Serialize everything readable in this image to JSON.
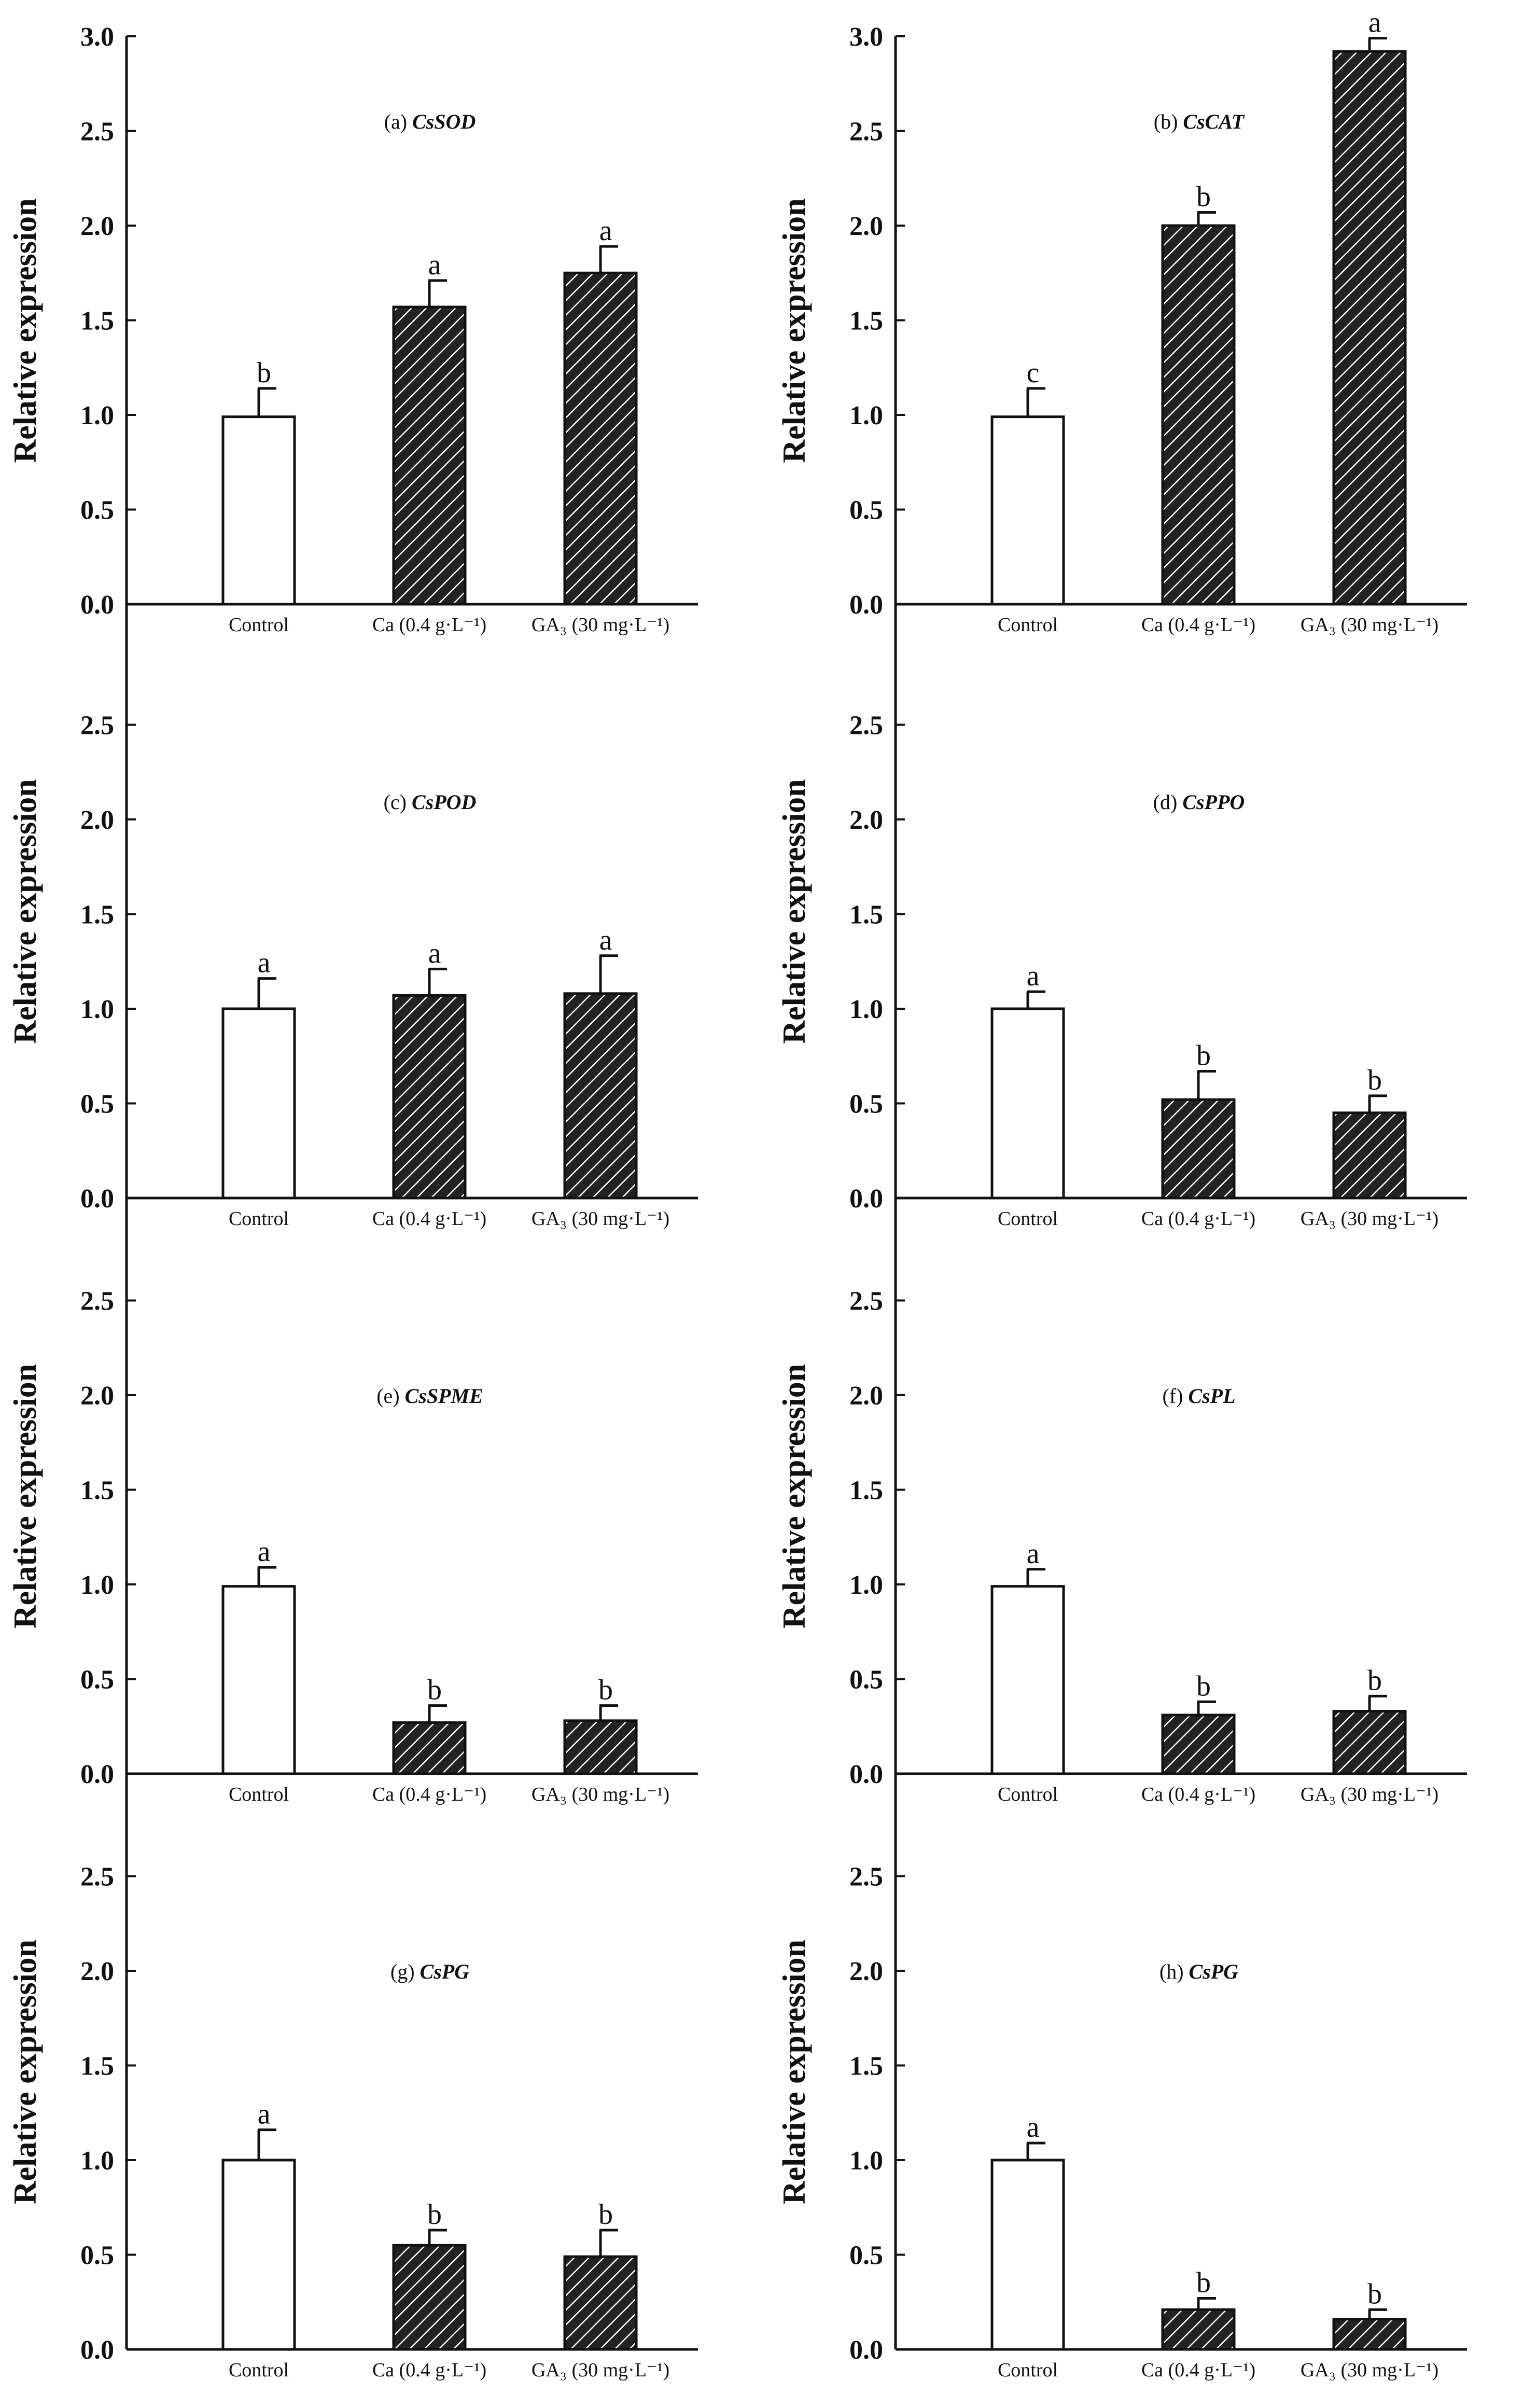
{
  "figure": {
    "colors": {
      "axis": "#111111",
      "control_fill": "#ffffff",
      "treated_fill": "#222222",
      "hatch": "#ffffff"
    }
  },
  "chart_data": [
    {
      "id": "a",
      "type": "bar",
      "title_prefix": "(a)",
      "gene": "CsSOD",
      "ylabel": "Relative expression",
      "ylim": [
        0,
        3.0
      ],
      "yticks": [
        "0.0",
        "0.5",
        "1.0",
        "1.5",
        "2.0",
        "2.5",
        "3.0"
      ],
      "categories": [
        "Control",
        "Ca (0.4 g·L⁻¹)",
        "GA₃ (30 mg·L⁻¹)"
      ],
      "values": [
        0.99,
        1.57,
        1.75
      ],
      "errors": [
        0.15,
        0.14,
        0.14
      ],
      "letters": [
        "b",
        "a",
        "a"
      ]
    },
    {
      "id": "b",
      "type": "bar",
      "title_prefix": "(b)",
      "gene": "CsCAT",
      "ylabel": "Relative expression",
      "ylim": [
        0,
        3.0
      ],
      "yticks": [
        "0.0",
        "0.5",
        "1.0",
        "1.5",
        "2.0",
        "2.5",
        "3.0"
      ],
      "categories": [
        "Control",
        "Ca (0.4 g·L⁻¹)",
        "GA₃ (30 mg·L⁻¹)"
      ],
      "values": [
        0.99,
        2.0,
        2.92
      ],
      "errors": [
        0.15,
        0.07,
        0.07
      ],
      "letters": [
        "c",
        "b",
        "a"
      ]
    },
    {
      "id": "c",
      "type": "bar",
      "title_prefix": "(c)",
      "gene": "CsPOD",
      "ylabel": "Relative expression",
      "ylim": [
        0,
        3.0
      ],
      "yticks": [
        "0.0",
        "0.5",
        "1.0",
        "1.5",
        "2.0",
        "2.5"
      ],
      "categories": [
        "Control",
        "Ca (0.4 g·L⁻¹)",
        "GA₃ (30 mg·L⁻¹)"
      ],
      "values": [
        1.0,
        1.07,
        1.08
      ],
      "errors": [
        0.16,
        0.14,
        0.2
      ],
      "letters": [
        "a",
        "a",
        "a"
      ]
    },
    {
      "id": "d",
      "type": "bar",
      "title_prefix": "(d)",
      "gene": "CsPPO",
      "ylabel": "Relative expression",
      "ylim": [
        0,
        3.0
      ],
      "yticks": [
        "0.0",
        "0.5",
        "1.0",
        "1.5",
        "2.0",
        "2.5"
      ],
      "categories": [
        "Control",
        "Ca (0.4 g·L⁻¹)",
        "GA₃ (30 mg·L⁻¹)"
      ],
      "values": [
        1.0,
        0.52,
        0.45
      ],
      "errors": [
        0.09,
        0.15,
        0.09
      ],
      "letters": [
        "a",
        "b",
        "b"
      ]
    },
    {
      "id": "e",
      "type": "bar",
      "title_prefix": "(e)",
      "gene": "CsSPME",
      "ylabel": "Relative expression",
      "ylim": [
        0,
        3.0
      ],
      "yticks": [
        "0.0",
        "0.5",
        "1.0",
        "1.5",
        "2.0",
        "2.5"
      ],
      "categories": [
        "Control",
        "Ca (0.4 g·L⁻¹)",
        "GA₃ (30 mg·L⁻¹)"
      ],
      "values": [
        0.99,
        0.27,
        0.28
      ],
      "errors": [
        0.1,
        0.09,
        0.08
      ],
      "letters": [
        "a",
        "b",
        "b"
      ]
    },
    {
      "id": "f",
      "type": "bar",
      "title_prefix": "(f)",
      "gene": "CsPL",
      "ylabel": "Relative expression",
      "ylim": [
        0,
        3.0
      ],
      "yticks": [
        "0.0",
        "0.5",
        "1.0",
        "1.5",
        "2.0",
        "2.5"
      ],
      "categories": [
        "Control",
        "Ca (0.4 g·L⁻¹)",
        "GA₃ (30 mg·L⁻¹)"
      ],
      "values": [
        0.99,
        0.31,
        0.33
      ],
      "errors": [
        0.09,
        0.07,
        0.08
      ],
      "letters": [
        "a",
        "b",
        "b"
      ]
    },
    {
      "id": "g",
      "type": "bar",
      "title_prefix": "(g)",
      "gene": "CsPG",
      "ylabel": "Relative expression",
      "ylim": [
        0,
        3.0
      ],
      "yticks": [
        "0.0",
        "0.5",
        "1.0",
        "1.5",
        "2.0",
        "2.5"
      ],
      "categories": [
        "Control",
        "Ca (0.4 g·L⁻¹)",
        "GA₃ (30 mg·L⁻¹)"
      ],
      "values": [
        1.0,
        0.55,
        0.49
      ],
      "errors": [
        0.16,
        0.08,
        0.14
      ],
      "letters": [
        "a",
        "b",
        "b"
      ]
    },
    {
      "id": "h",
      "type": "bar",
      "title_prefix": "(h)",
      "gene": "CsPG",
      "ylabel": "Relative expression",
      "ylim": [
        0,
        3.0
      ],
      "yticks": [
        "0.0",
        "0.5",
        "1.0",
        "1.5",
        "2.0",
        "2.5"
      ],
      "categories": [
        "Control",
        "Ca (0.4 g·L⁻¹)",
        "GA₃ (30 mg·L⁻¹)"
      ],
      "values": [
        1.0,
        0.21,
        0.16
      ],
      "errors": [
        0.09,
        0.06,
        0.05
      ],
      "letters": [
        "a",
        "b",
        "b"
      ]
    }
  ]
}
